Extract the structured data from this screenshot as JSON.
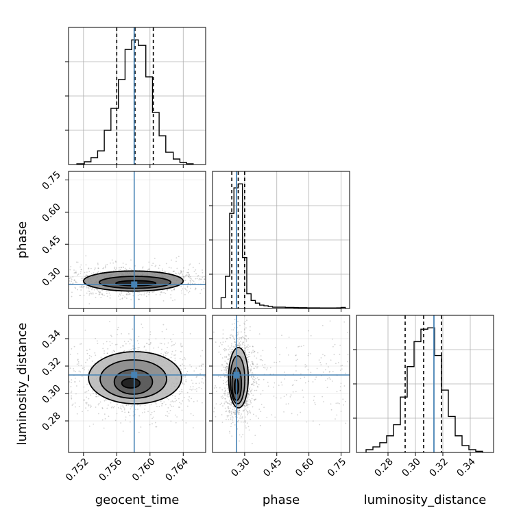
{
  "chart_data": {
    "type": "corner",
    "parameters": [
      "geocent_time",
      "phase",
      "luminosity_distance"
    ],
    "truths": {
      "geocent_time": 0.7581,
      "phase": 0.262,
      "luminosity_distance": 0.3135
    },
    "colors": {
      "truth": "#4682b4",
      "hist": "#000000",
      "grid": "#b0b0b0",
      "points": "#808080"
    },
    "grid": true,
    "diagonal": [
      {
        "name": "geocent_time",
        "xlim": [
          0.7502,
          0.7667
        ],
        "quantiles": [
          0.756,
          0.7582,
          0.7604
        ],
        "bin_edges": [
          0.7512,
          0.7521,
          0.7529,
          0.7537,
          0.7545,
          0.7553,
          0.7562,
          0.757,
          0.7578,
          0.7586,
          0.7595,
          0.7603,
          0.7611,
          0.7619,
          0.7628,
          0.7636,
          0.7644,
          0.7652
        ],
        "counts": [
          0.005,
          0.02,
          0.05,
          0.1,
          0.25,
          0.41,
          0.62,
          0.84,
          0.91,
          0.87,
          0.64,
          0.38,
          0.21,
          0.09,
          0.04,
          0.015,
          0.005
        ],
        "ytick_labels": [
          "",
          "",
          "",
          ""
        ],
        "xtick_labels": [
          "0.752",
          "0.756",
          "0.760",
          "0.764"
        ],
        "xtick_values": [
          0.752,
          0.756,
          0.76,
          0.764
        ]
      },
      {
        "name": "phase",
        "xlim": [
          0.15,
          0.79
        ],
        "quantiles": [
          0.24,
          0.27,
          0.3
        ],
        "bin_edges": [
          0.19,
          0.21,
          0.23,
          0.25,
          0.27,
          0.29,
          0.31,
          0.33,
          0.35,
          0.37,
          0.39,
          0.41,
          0.43,
          0.45,
          0.47,
          0.49,
          0.51,
          0.53,
          0.55,
          0.57,
          0.59,
          0.61,
          0.63,
          0.65,
          0.67,
          0.69,
          0.71,
          0.73,
          0.75,
          0.77
        ],
        "counts": [
          0.08,
          0.24,
          0.71,
          0.9,
          0.93,
          0.38,
          0.11,
          0.06,
          0.04,
          0.025,
          0.02,
          0.015,
          0.01,
          0.01,
          0.01,
          0.008,
          0.008,
          0.007,
          0.006,
          0.006,
          0.005,
          0.005,
          0.005,
          0.004,
          0.004,
          0.004,
          0.004,
          0.005,
          0.008
        ],
        "ytick_labels": [
          "",
          "",
          "",
          ""
        ],
        "xtick_labels": [
          "0.30",
          "0.45",
          "0.60",
          "0.75"
        ],
        "xtick_values": [
          0.3,
          0.45,
          0.6,
          0.75
        ]
      },
      {
        "name": "luminosity_distance",
        "xlim": [
          0.257,
          0.357
        ],
        "quantiles": [
          0.2925,
          0.306,
          0.319
        ],
        "bin_edges": [
          0.264,
          0.269,
          0.274,
          0.279,
          0.284,
          0.289,
          0.294,
          0.299,
          0.304,
          0.309,
          0.314,
          0.319,
          0.324,
          0.329,
          0.334,
          0.339,
          0.344,
          0.349
        ],
        "counts": [
          0.02,
          0.04,
          0.07,
          0.12,
          0.2,
          0.4,
          0.62,
          0.8,
          0.89,
          0.9,
          0.7,
          0.45,
          0.26,
          0.12,
          0.05,
          0.02,
          0.008
        ],
        "ytick_labels": [
          "",
          "",
          "",
          ""
        ],
        "xtick_labels": [
          "0.28",
          "0.30",
          "0.32",
          "0.34"
        ],
        "xtick_values": [
          0.28,
          0.3,
          0.32,
          0.34
        ]
      }
    ],
    "ytick_labels": {
      "phase": [
        "0.30",
        "0.45",
        "0.60",
        "0.75"
      ],
      "luminosity_distance": [
        "0.28",
        "0.30",
        "0.32",
        "0.34"
      ]
    },
    "ytick_values": {
      "phase": [
        0.3,
        0.45,
        0.6,
        0.75
      ],
      "luminosity_distance": [
        0.28,
        0.3,
        0.32,
        0.34
      ]
    },
    "ylims": {
      "phase": [
        0.15,
        0.79
      ],
      "luminosity_distance": [
        0.257,
        0.357
      ]
    },
    "contours": [
      {
        "x": "geocent_time",
        "y": "phase",
        "levels": [
          {
            "cx": 0.7583,
            "cy": 0.268,
            "rx": 0.0024,
            "ry": 0.012
          },
          {
            "cx": 0.7582,
            "cy": 0.272,
            "rx": 0.0043,
            "ry": 0.028
          },
          {
            "cx": 0.758,
            "cy": 0.278,
            "rx": 0.006,
            "ry": 0.047
          }
        ]
      },
      {
        "x": "geocent_time",
        "y": "luminosity_distance",
        "levels": [
          {
            "cx": 0.7577,
            "cy": 0.3075,
            "rx": 0.0011,
            "ry": 0.0035
          },
          {
            "cx": 0.758,
            "cy": 0.3085,
            "rx": 0.0023,
            "ry": 0.009
          },
          {
            "cx": 0.758,
            "cy": 0.3105,
            "rx": 0.004,
            "ry": 0.014
          },
          {
            "cx": 0.7582,
            "cy": 0.3115,
            "rx": 0.0056,
            "ry": 0.019
          }
        ]
      },
      {
        "x": "phase",
        "y": "luminosity_distance",
        "levels": [
          {
            "cx": 0.262,
            "cy": 0.305,
            "rx": 0.01,
            "ry": 0.0055
          },
          {
            "cx": 0.263,
            "cy": 0.307,
            "rx": 0.022,
            "ry": 0.012
          },
          {
            "cx": 0.267,
            "cy": 0.31,
            "rx": 0.034,
            "ry": 0.0175
          },
          {
            "cx": 0.271,
            "cy": 0.3115,
            "rx": 0.046,
            "ry": 0.022
          }
        ]
      }
    ],
    "axis_labels": {
      "x": [
        "geocent_time",
        "phase",
        "luminosity_distance"
      ],
      "y": [
        "phase",
        "luminosity_distance"
      ]
    }
  }
}
